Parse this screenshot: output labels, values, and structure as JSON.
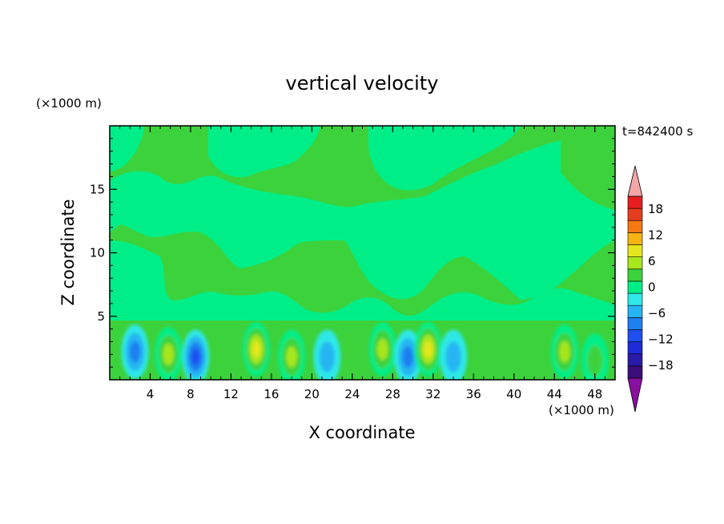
{
  "chart_data": {
    "type": "heatmap",
    "title": "vertical velocity",
    "xlabel": "X coordinate",
    "ylabel": "Z coordinate",
    "x_unit": "(×1000 m)",
    "y_unit": "(×1000 m)",
    "time_label": "t=842400 s",
    "xlim": [
      0,
      50
    ],
    "ylim": [
      0,
      20
    ],
    "x_ticks": [
      4,
      8,
      12,
      16,
      20,
      24,
      28,
      32,
      36,
      40,
      44,
      48
    ],
    "y_ticks": [
      5,
      10,
      15
    ],
    "colorbar": {
      "levels": [
        -21,
        -18,
        -15,
        -12,
        -9,
        -6,
        -3,
        0,
        3,
        6,
        9,
        12,
        15,
        18,
        21
      ],
      "tick_labels": [
        "18",
        "12",
        "6",
        "0",
        "−6",
        "−12",
        "−18"
      ],
      "tick_values": [
        18,
        12,
        6,
        0,
        -6,
        -12,
        -18
      ],
      "colors": [
        "#3b0f7a",
        "#2a1aa8",
        "#1e2bd6",
        "#1f4ff0",
        "#1f80f0",
        "#26b5f2",
        "#2fe8e8",
        "#00ee88",
        "#3cd23c",
        "#a8e61e",
        "#e6e61e",
        "#f5b414",
        "#f57814",
        "#e63c1e",
        "#e61e1e"
      ],
      "extend_low_color": "#8a0fa0",
      "extend_high_color": "#f4a7a7"
    },
    "background_level": "0 to 3 (mostly)",
    "features": [
      {
        "x": 2.5,
        "z": 2.2,
        "w": -6
      },
      {
        "x": 5.8,
        "z": 2.0,
        "w": 7
      },
      {
        "x": 8.5,
        "z": 1.8,
        "w": -9
      },
      {
        "x": 14.5,
        "z": 2.4,
        "w": 10
      },
      {
        "x": 18.0,
        "z": 1.8,
        "w": 6
      },
      {
        "x": 21.5,
        "z": 1.8,
        "w": -5
      },
      {
        "x": 27.0,
        "z": 2.4,
        "w": 8
      },
      {
        "x": 29.5,
        "z": 1.8,
        "w": -8
      },
      {
        "x": 31.5,
        "z": 2.4,
        "w": 10
      },
      {
        "x": 34.0,
        "z": 1.8,
        "w": -5
      },
      {
        "x": 45.0,
        "z": 2.2,
        "w": 7
      },
      {
        "x": 48.0,
        "z": 1.5,
        "w": 5
      }
    ]
  }
}
